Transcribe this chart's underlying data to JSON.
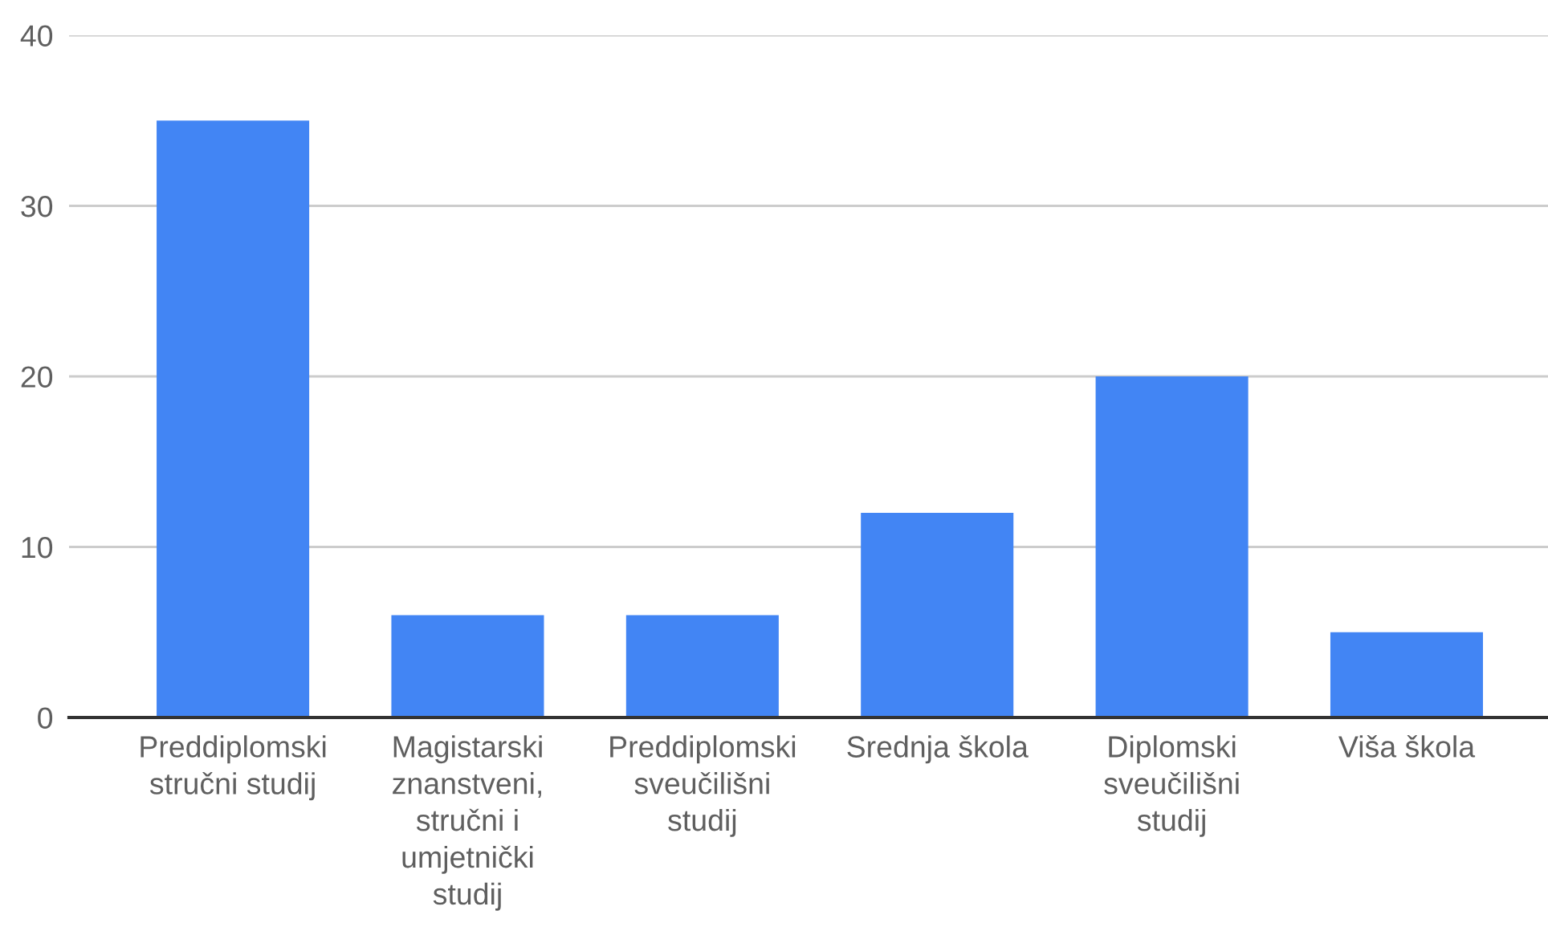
{
  "chart_data": {
    "type": "bar",
    "categories": [
      "Preddiplomski stručni studij",
      "Magistarski znanstveni, stručni i umjetnički studij",
      "Preddiplomski sveučilišni studij",
      "Srednja škola",
      "Diplomski sveučilišni studij",
      "Viša škola"
    ],
    "values": [
      35,
      6,
      6,
      12,
      20,
      5
    ],
    "color": "#4285f4",
    "ylim": [
      0,
      40
    ],
    "yticks": [
      0,
      10,
      20,
      30,
      40
    ],
    "grid": "y",
    "legend": false
  }
}
